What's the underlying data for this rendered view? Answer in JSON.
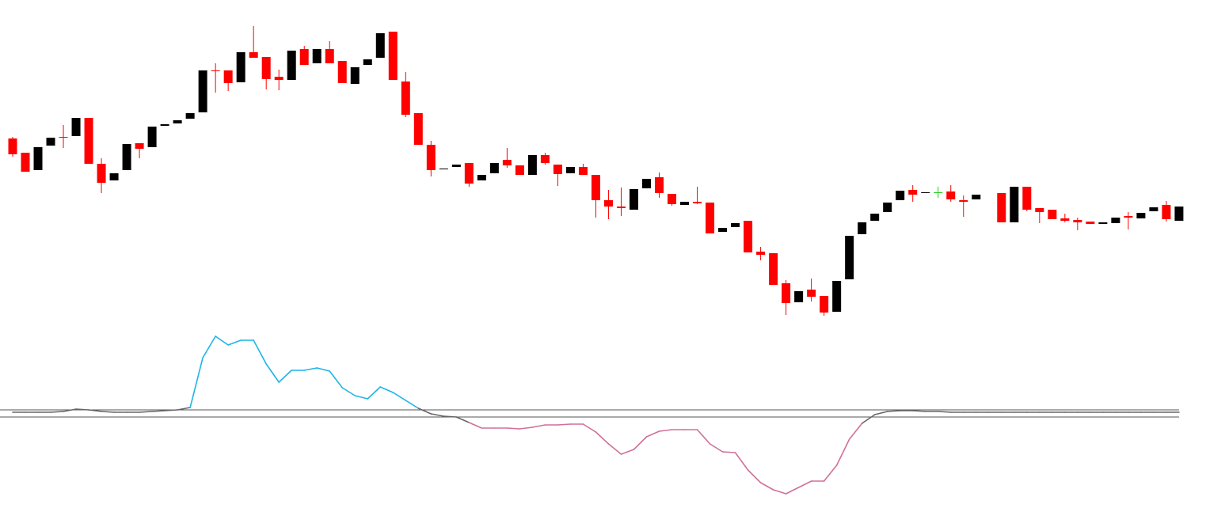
{
  "chart_data": [
    {
      "type": "candlestick",
      "open": [
        467,
        449,
        427,
        458,
        469,
        470,
        493,
        435,
        414,
        427,
        461,
        456,
        483,
        486,
        492,
        500,
        553,
        553,
        538,
        576,
        570,
        545,
        541,
        580,
        562,
        580,
        565,
        536,
        560,
        569,
        602,
        539,
        499,
        459,
        428,
        431,
        436,
        414,
        423,
        440,
        433,
        421,
        446,
        434,
        423,
        431,
        421,
        389,
        381,
        377,
        404,
        418,
        397,
        383,
        387,
        386,
        349,
        355,
        363,
        324,
        322,
        284,
        260,
        276,
        268,
        248,
        289,
        346,
        363,
        374,
        389,
        402,
        398,
        399,
        400,
        389,
        390,
        null,
        398,
        361,
        406,
        379,
        377,
        366,
        364,
        362,
        359,
        360,
        369,
        366,
        375,
        383,
        363
      ],
      "high": [
        469,
        449,
        456,
        468,
        484,
        493,
        493,
        442,
        423,
        460,
        461,
        482,
        485,
        490,
        499,
        553,
        562,
        553,
        576,
        609,
        570,
        554,
        578,
        584,
        580,
        590,
        565,
        557,
        567,
        600,
        602,
        551,
        499,
        464,
        429,
        434,
        436,
        421,
        436,
        455,
        433,
        446,
        449,
        434,
        431,
        435,
        421,
        402,
        405,
        403,
        416,
        424,
        397,
        387,
        406,
        386,
        354,
        360,
        363,
        330,
        322,
        288,
        274,
        290,
        268,
        287,
        344,
        361,
        372,
        386,
        401,
        408,
        399,
        406,
        408,
        395,
        396,
        null,
        398,
        406,
        406,
        379,
        377,
        372,
        367,
        362,
        361,
        367,
        374,
        373,
        380,
        388,
        381
      ],
      "low": [
        444,
        425,
        427,
        458,
        455,
        470,
        435,
        398,
        414,
        427,
        442,
        456,
        483,
        486,
        492,
        500,
        525,
        527,
        538,
        569,
        529,
        528,
        541,
        560,
        562,
        562,
        537,
        536,
        560,
        569,
        541,
        494,
        459,
        419,
        428,
        431,
        406,
        414,
        423,
        430,
        421,
        421,
        434,
        407,
        423,
        421,
        367,
        365,
        369,
        377,
        404,
        392,
        382,
        383,
        384,
        347,
        349,
        355,
        323,
        313,
        282,
        244,
        260,
        261,
        243,
        248,
        289,
        346,
        363,
        374,
        389,
        387,
        398,
        392,
        387,
        368,
        390,
        null,
        361,
        361,
        375,
        360,
        365,
        361,
        351,
        359,
        359,
        360,
        352,
        366,
        375,
        362,
        363
      ],
      "close": [
        447,
        425,
        456,
        468,
        468,
        493,
        435,
        411,
        423,
        460,
        454,
        482,
        485,
        490,
        499,
        553,
        552,
        537,
        576,
        569,
        542,
        541,
        578,
        560,
        580,
        562,
        537,
        557,
        567,
        600,
        541,
        497,
        459,
        427,
        429,
        434,
        410,
        421,
        436,
        433,
        421,
        446,
        436,
        422,
        431,
        421,
        389,
        381,
        379,
        403,
        416,
        398,
        384,
        387,
        385,
        347,
        354,
        360,
        323,
        320,
        282,
        259,
        274,
        267,
        247,
        287,
        344,
        361,
        372,
        386,
        401,
        396,
        399,
        399,
        390,
        387,
        396,
        null,
        361,
        406,
        377,
        374,
        365,
        363,
        361,
        359,
        361,
        367,
        367,
        373,
        380,
        365,
        381
      ],
      "up_color": "#000000",
      "down_color": "#ff0000",
      "flat_color": "#22cc22",
      "ylim": [
        0,
        642
      ]
    },
    {
      "type": "line",
      "values": [
        1,
        1,
        1,
        1,
        2,
        5,
        4,
        2,
        1,
        1,
        1,
        2,
        3,
        4,
        7,
        70,
        97,
        86,
        92,
        92,
        62,
        39,
        54,
        54,
        57,
        53,
        32,
        22,
        18,
        33,
        26,
        16,
        6,
        -1,
        -4,
        -5,
        -12,
        -19,
        -19,
        -19,
        -20,
        -18,
        -15,
        -15,
        -14,
        -14,
        -24,
        -39,
        -52,
        -46,
        -30,
        -23,
        -21,
        -21,
        -21,
        -39,
        -49,
        -50,
        -72,
        -88,
        -97,
        -102,
        -94,
        -86,
        -86,
        -66,
        -33,
        -13,
        -2,
        2,
        3,
        3,
        2,
        2,
        1,
        1,
        1,
        1,
        1,
        1,
        1,
        1,
        1,
        1,
        1,
        1,
        1,
        1,
        1,
        1,
        1,
        1,
        1
      ],
      "levels": [
        4,
        -5
      ],
      "up_color": "#1eb4e8",
      "down_color": "#d0709a",
      "flat_color": "#666666",
      "level_color": "#555555",
      "ylim": [
        -120,
        522
      ]
    }
  ]
}
